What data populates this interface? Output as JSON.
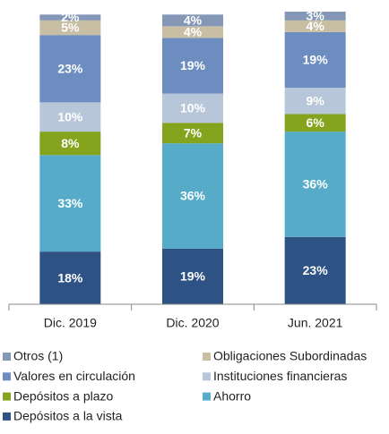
{
  "chart_data": {
    "type": "stacked_bar",
    "categories": [
      "Dic. 2019",
      "Dic. 2020",
      "Jun. 2021"
    ],
    "series": [
      {
        "name": "Depósitos a la vista",
        "color": "#2e5284",
        "values": [
          18,
          19,
          23
        ],
        "value_labels": [
          "18%",
          "19%",
          "23%"
        ]
      },
      {
        "name": "Ahorro",
        "color": "#56acc8",
        "values": [
          33,
          36,
          36
        ],
        "value_labels": [
          "33%",
          "36%",
          "36%"
        ]
      },
      {
        "name": "Depósitos a plazo",
        "color": "#84a41e",
        "values": [
          8,
          7,
          6
        ],
        "value_labels": [
          "8%",
          "7%",
          "6%"
        ]
      },
      {
        "name": "Instituciones financieras",
        "color": "#b8c6d9",
        "values": [
          10,
          10,
          9
        ],
        "value_labels": [
          "10%",
          "10%",
          "9%"
        ]
      },
      {
        "name": "Valores en circulación",
        "color": "#6d8dc0",
        "values": [
          23,
          19,
          19
        ],
        "value_labels": [
          "23%",
          "19%",
          "19%"
        ]
      },
      {
        "name": "Obligaciones Subordinadas",
        "color": "#c8bea3",
        "values": [
          5,
          4,
          4
        ],
        "value_labels": [
          "5%",
          "4%",
          "4%"
        ]
      },
      {
        "name": "Otros (1)",
        "color": "#8597b6",
        "values": [
          2,
          4,
          3
        ],
        "value_labels": [
          "2%",
          "4%",
          "3%"
        ]
      }
    ]
  }
}
